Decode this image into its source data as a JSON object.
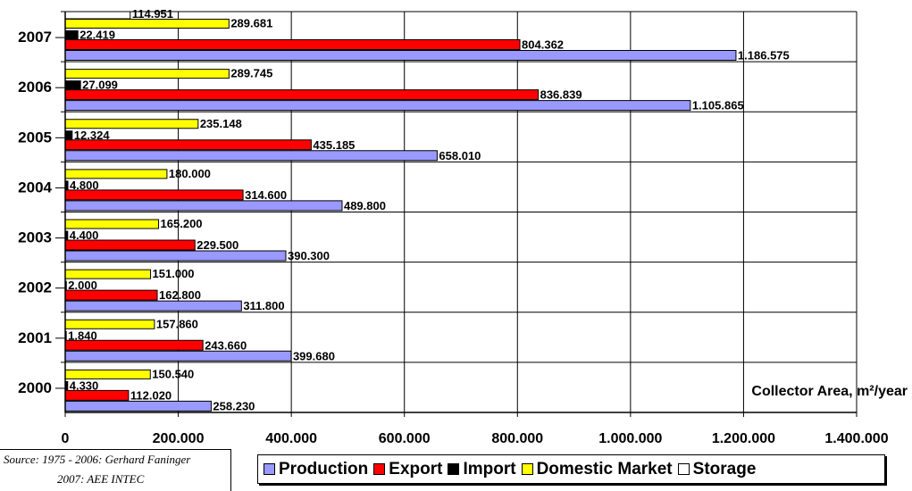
{
  "chart_data": {
    "type": "bar",
    "orientation": "horizontal",
    "categories": [
      "2000",
      "2001",
      "2002",
      "2003",
      "2004",
      "2005",
      "2006",
      "2007"
    ],
    "series": [
      {
        "name": "Storage",
        "color": "#ffffff",
        "values": [
          null,
          null,
          null,
          null,
          null,
          null,
          null,
          114951
        ],
        "labels": [
          "",
          "",
          "",
          "",
          "",
          "",
          "",
          "114.951"
        ]
      },
      {
        "name": "Domestic Market",
        "color": "#ffff00",
        "values": [
          150540,
          157860,
          151000,
          165200,
          180000,
          235148,
          289745,
          289681
        ],
        "labels": [
          "150.540",
          "157.860",
          "151.000",
          "165.200",
          "180.000",
          "235.148",
          "289.745",
          "289.681"
        ]
      },
      {
        "name": "Import",
        "color": "#000000",
        "values": [
          4330,
          1840,
          2000,
          4400,
          4800,
          12324,
          27099,
          22419
        ],
        "labels": [
          "4.330",
          "1.840",
          "2.000",
          "4.400",
          "4.800",
          "12.324",
          "27.099",
          "22.419"
        ]
      },
      {
        "name": "Export",
        "color": "#ff0000",
        "values": [
          112020,
          243660,
          162800,
          229500,
          314600,
          435185,
          836839,
          804362
        ],
        "labels": [
          "112.020",
          "243.660",
          "162.800",
          "229.500",
          "314.600",
          "435.185",
          "836.839",
          "804.362"
        ]
      },
      {
        "name": "Production",
        "color": "#9999ff",
        "values": [
          258230,
          399680,
          311800,
          390300,
          489800,
          658010,
          1105865,
          1186575
        ],
        "labels": [
          "258.230",
          "399.680",
          "311.800",
          "390.300",
          "489.800",
          "658.010",
          "1.105.865",
          "1.186.575"
        ]
      }
    ],
    "xlim": [
      0,
      1400000
    ],
    "xticks": [
      0,
      200000,
      400000,
      600000,
      800000,
      1000000,
      1200000,
      1400000
    ],
    "xtick_labels": [
      "0",
      "200.000",
      "400.000",
      "600.000",
      "800.000",
      "1.000.000",
      "1.200.000",
      "1.400.000"
    ],
    "xlabel": "Collector Area, m²/year",
    "grid": true,
    "legend_position": "bottom"
  },
  "legend": {
    "items": [
      {
        "label": "Production",
        "color": "#9999ff"
      },
      {
        "label": "Export",
        "color": "#ff0000"
      },
      {
        "label": "Import",
        "color": "#000000"
      },
      {
        "label": "Domestic Market",
        "color": "#ffff00"
      },
      {
        "label": "Storage",
        "color": "#ffffff"
      }
    ]
  },
  "source": {
    "line1": "Source: 1975 - 2006: Gerhard Faninger",
    "line2": "2007: AEE INTEC"
  }
}
